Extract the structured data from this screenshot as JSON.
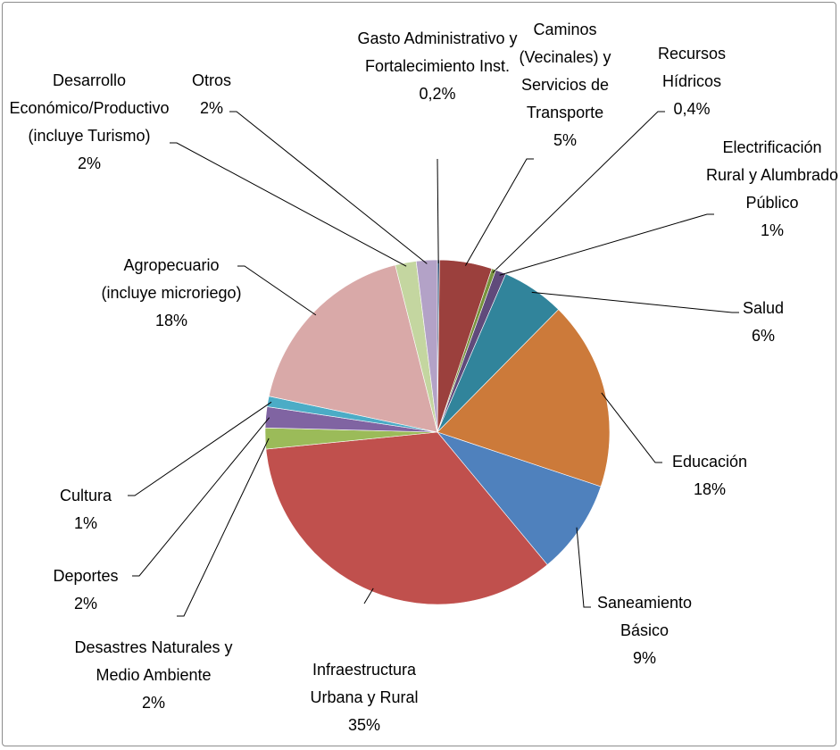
{
  "chart_data": {
    "type": "pie",
    "categories": [
      "Gasto Administrativo y Fortalecimiento Inst.",
      "Caminos (Vecinales) y Servicios de Transporte",
      "Recursos Hídricos",
      "Electrificación Rural y Alumbrado Público",
      "Salud",
      "Educación",
      "Saneamiento Básico",
      "Infraestructura Urbana y Rural",
      "Desastres Naturales y Medio Ambiente",
      "Deportes",
      "Cultura",
      "Agropecuario (incluye microriego)",
      "Desarrollo Económico/Productivo (incluye Turismo)",
      "Otros"
    ],
    "values": [
      0.2,
      5,
      0.4,
      1,
      6,
      18,
      9,
      35,
      2,
      2,
      1,
      18,
      2,
      2
    ],
    "value_labels": [
      "0,2%",
      "5%",
      "0,4%",
      "1%",
      "6%",
      "18%",
      "9%",
      "35%",
      "2%",
      "2%",
      "1%",
      "18%",
      "2%",
      "2%"
    ],
    "colors": [
      "#2c4d75",
      "#9b403d",
      "#77933c",
      "#604a7b",
      "#31849b",
      "#cc7a3a",
      "#4f81bd",
      "#c0504d",
      "#9bbb59",
      "#8064a2",
      "#4bacc6",
      "#d9a9a8",
      "#c4d6a0",
      "#b3a2c7"
    ]
  }
}
